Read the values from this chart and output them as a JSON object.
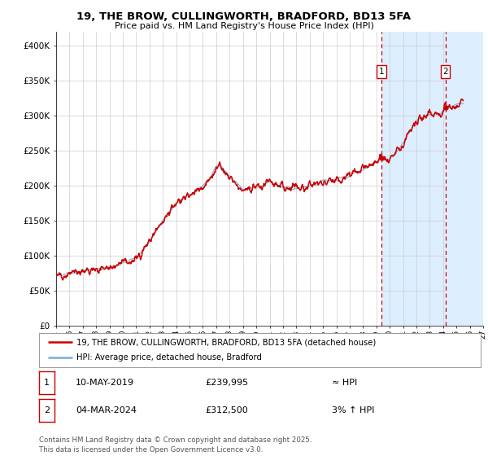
{
  "title_line1": "19, THE BROW, CULLINGWORTH, BRADFORD, BD13 5FA",
  "title_line2": "Price paid vs. HM Land Registry's House Price Index (HPI)",
  "background_color": "#ffffff",
  "plot_bg_color": "#ffffff",
  "grid_color": "#cccccc",
  "hpi_color": "#7aafd4",
  "price_color": "#cc0000",
  "shade_color": "#ddeeff",
  "dashed_color": "#cc0000",
  "ylim": [
    0,
    420000
  ],
  "yticks": [
    0,
    50000,
    100000,
    150000,
    200000,
    250000,
    300000,
    350000,
    400000
  ],
  "ytick_labels": [
    "£0",
    "£50K",
    "£100K",
    "£150K",
    "£200K",
    "£250K",
    "£300K",
    "£350K",
    "£400K"
  ],
  "xmin_year": 1995,
  "xmax_year": 2027,
  "xticks": [
    1995,
    1996,
    1997,
    1998,
    1999,
    2000,
    2001,
    2002,
    2003,
    2004,
    2005,
    2006,
    2007,
    2008,
    2009,
    2010,
    2011,
    2012,
    2013,
    2014,
    2015,
    2016,
    2017,
    2018,
    2019,
    2020,
    2021,
    2022,
    2023,
    2024,
    2025,
    2026,
    2027
  ],
  "sale1_x": 2019.36,
  "sale1_y": 239995,
  "sale2_x": 2024.17,
  "sale2_y": 312500,
  "shade_x1": 2019.36,
  "shade_x2": 2027,
  "hatch_x1": 2024.17,
  "hatch_x2": 2027,
  "legend_label1": "19, THE BROW, CULLINGWORTH, BRADFORD, BD13 5FA (detached house)",
  "legend_label2": "HPI: Average price, detached house, Bradford",
  "annotation1_date": "10-MAY-2019",
  "annotation1_price": "£239,995",
  "annotation1_hpi": "≈ HPI",
  "annotation2_date": "04-MAR-2024",
  "annotation2_price": "£312,500",
  "annotation2_hpi": "3% ↑ HPI",
  "footer": "Contains HM Land Registry data © Crown copyright and database right 2025.\nThis data is licensed under the Open Government Licence v3.0."
}
